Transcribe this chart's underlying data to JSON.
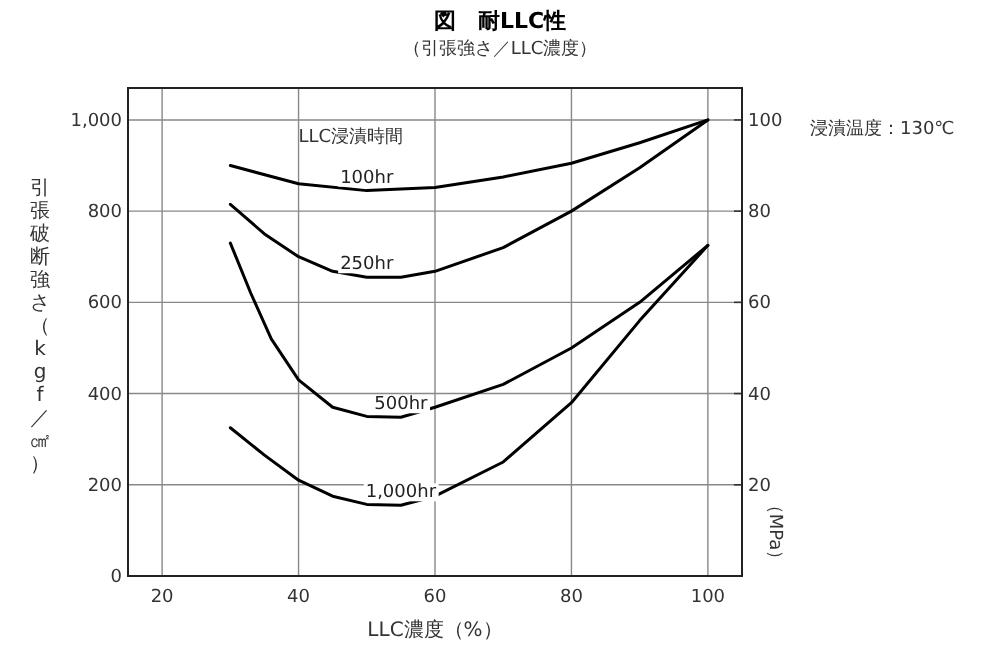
{
  "chart_data": {
    "type": "line",
    "title": "図　耐LLC性",
    "subtitle": "（引張強さ／LLC濃度）",
    "xlabel": "LLC濃度（%）",
    "ylabel": "引張破断強さ（kgf／㎠）",
    "y2label": "（MPa）",
    "legend_title": "LLC浸漬時間",
    "annotations": [
      "浸漬温度：130℃"
    ],
    "xlim": [
      15,
      105
    ],
    "xticks": [
      20,
      40,
      60,
      80,
      100
    ],
    "ylim": [
      0,
      1070
    ],
    "yticks": [
      0,
      200,
      400,
      600,
      800,
      {
        "value": 1000,
        "label": "1,000"
      }
    ],
    "y2lim": [
      0,
      107
    ],
    "y2ticks": [
      20,
      40,
      60,
      80,
      100
    ],
    "grid": true,
    "legend": false,
    "series": [
      {
        "name": "100hr",
        "color": "#000000",
        "x": [
          30,
          40,
          50,
          60,
          70,
          80,
          90,
          100
        ],
        "values": [
          900,
          860,
          845,
          852,
          875,
          905,
          950,
          1000
        ]
      },
      {
        "name": "250hr",
        "color": "#000000",
        "x": [
          30,
          35,
          40,
          45,
          50,
          55,
          60,
          70,
          80,
          90,
          100
        ],
        "values": [
          815,
          750,
          700,
          668,
          655,
          655,
          668,
          720,
          800,
          895,
          1000
        ]
      },
      {
        "name": "500hr",
        "color": "#000000",
        "x": [
          30,
          33,
          36,
          40,
          45,
          50,
          55,
          60,
          70,
          80,
          90,
          100
        ],
        "values": [
          730,
          620,
          520,
          430,
          370,
          350,
          348,
          370,
          420,
          500,
          600,
          725
        ]
      },
      {
        "name": "1,000hr",
        "color": "#000000",
        "x": [
          30,
          35,
          40,
          45,
          50,
          55,
          60,
          70,
          80,
          90,
          100
        ],
        "values": [
          325,
          265,
          210,
          175,
          157,
          155,
          175,
          250,
          380,
          560,
          725
        ]
      }
    ]
  }
}
